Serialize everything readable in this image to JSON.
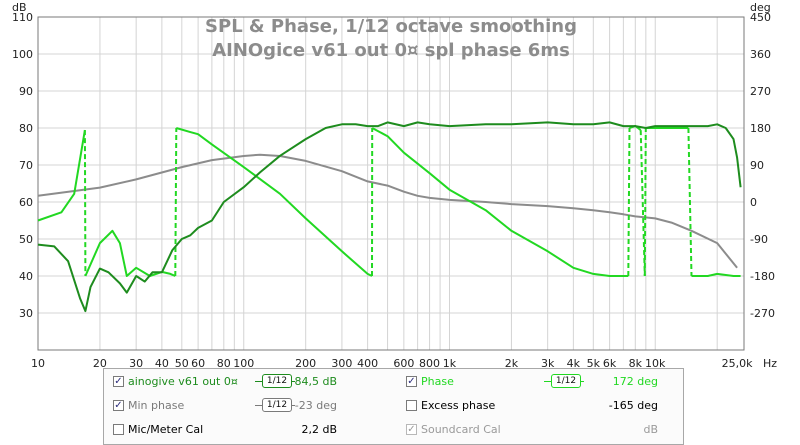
{
  "chart_data": {
    "type": "line",
    "title": "SPL & Phase, 1/12 octave smoothing",
    "subtitle": "AINOgice v61 out 0¤  spl phase 6ms",
    "left_axis": {
      "label": "dB",
      "ylim": [
        20,
        110
      ],
      "ticks": [
        30,
        40,
        50,
        60,
        70,
        80,
        90,
        100,
        110
      ]
    },
    "right_axis": {
      "label": "deg",
      "ylim": [
        -360,
        450
      ],
      "ticks": [
        -270,
        -180,
        -90,
        0,
        90,
        180,
        270,
        360,
        450
      ]
    },
    "x_axis": {
      "scale": "log",
      "xlim": [
        10,
        27000
      ],
      "unit": "Hz",
      "ticks": [
        {
          "v": 10,
          "label": "10"
        },
        {
          "v": 20,
          "label": "20"
        },
        {
          "v": 30,
          "label": "30"
        },
        {
          "v": 40,
          "label": "40"
        },
        {
          "v": 50,
          "label": "50"
        },
        {
          "v": 60,
          "label": "60"
        },
        {
          "v": 80,
          "label": "80"
        },
        {
          "v": 100,
          "label": "100"
        },
        {
          "v": 200,
          "label": "200"
        },
        {
          "v": 300,
          "label": "300"
        },
        {
          "v": 400,
          "label": "400"
        },
        {
          "v": 600,
          "label": "600"
        },
        {
          "v": 800,
          "label": "800"
        },
        {
          "v": 1000,
          "label": "1k"
        },
        {
          "v": 2000,
          "label": "2k"
        },
        {
          "v": 3000,
          "label": "3k"
        },
        {
          "v": 4000,
          "label": "4k"
        },
        {
          "v": 5000,
          "label": "5k"
        },
        {
          "v": 6000,
          "label": "6k"
        },
        {
          "v": 8000,
          "label": "8k"
        },
        {
          "v": 10000,
          "label": "10k"
        },
        {
          "v": 25000,
          "label": "25,0k"
        }
      ],
      "unit_label": "Hz"
    },
    "grid": true,
    "series": [
      {
        "name": "ainogive v61 out 0¤",
        "axis": "left",
        "color": "#1e8c1e",
        "width": 2,
        "x": [
          10,
          12,
          14,
          16,
          17,
          18,
          20,
          22,
          25,
          27,
          30,
          33,
          36,
          40,
          45,
          50,
          55,
          60,
          70,
          80,
          100,
          120,
          150,
          200,
          250,
          300,
          350,
          400,
          450,
          500,
          600,
          700,
          800,
          1000,
          1500,
          2000,
          3000,
          4000,
          5000,
          6000,
          7000,
          8000,
          9000,
          10000,
          12000,
          15000,
          18000,
          20000,
          22000,
          24000,
          25000,
          26000
        ],
        "y": [
          48.5,
          48,
          44,
          34,
          30.5,
          37,
          42,
          41,
          38,
          35.5,
          40,
          38.5,
          41,
          41,
          47,
          50,
          51,
          53,
          55,
          60,
          64,
          68,
          72.5,
          77,
          80,
          81,
          81,
          80.5,
          80.5,
          81.5,
          80.5,
          81.5,
          81,
          80.5,
          81,
          81,
          81.5,
          81,
          81,
          81.5,
          80.5,
          80.5,
          80,
          80.5,
          80.5,
          80.5,
          80.5,
          81,
          80,
          77,
          72,
          64
        ]
      },
      {
        "name": "Phase",
        "axis": "right",
        "color": "#22d822",
        "width": 2,
        "x": [
          10,
          13,
          15,
          16.9,
          17,
          20,
          23,
          25,
          27,
          30,
          35,
          40,
          44,
          46.5,
          47,
          55,
          60,
          70,
          100,
          150,
          200,
          300,
          400,
          420,
          421,
          500,
          600,
          800,
          1000,
          1500,
          2000,
          3000,
          4000,
          5000,
          6000,
          7000,
          7400,
          7500,
          8000,
          8500,
          8900,
          9000,
          10000,
          12000,
          14000,
          14500,
          15000,
          18000,
          20000,
          24000,
          26000
        ],
        "y": [
          -45,
          -25,
          20,
          175,
          -180,
          -100,
          -70,
          -100,
          -180,
          -160,
          -180,
          -170,
          -175,
          -180,
          180,
          170,
          165,
          140,
          85,
          20,
          -40,
          -120,
          -175,
          -180,
          180,
          160,
          120,
          70,
          30,
          -20,
          -70,
          -120,
          -160,
          -175,
          -180,
          -180,
          -180,
          180,
          185,
          175,
          -180,
          180,
          180,
          180,
          180,
          180,
          -180,
          -180,
          -175,
          -180,
          -180
        ]
      },
      {
        "name": "Min phase",
        "axis": "right",
        "color": "#8c8c8c",
        "width": 2,
        "x": [
          10,
          20,
          30,
          50,
          70,
          100,
          120,
          150,
          200,
          300,
          400,
          500,
          600,
          700,
          800,
          1000,
          1500,
          2000,
          3000,
          4000,
          5000,
          6000,
          7000,
          8000,
          10000,
          12000,
          15000,
          20000,
          25000
        ],
        "y": [
          15,
          35,
          55,
          85,
          102,
          112,
          115,
          112,
          100,
          75,
          50,
          40,
          25,
          15,
          10,
          5,
          0,
          -5,
          -10,
          -15,
          -20,
          -25,
          -30,
          -35,
          -40,
          -50,
          -70,
          -100,
          -160
        ]
      }
    ]
  },
  "legend": {
    "rows": [
      {
        "left": {
          "checked": true,
          "label": "ainogive v61 out 0¤",
          "smoothing": "1/12",
          "value": "84,5 dB",
          "color": "#1e8c1e",
          "enabled": true
        },
        "right": {
          "checked": true,
          "label": "Phase",
          "smoothing": "1/12",
          "value": "172 deg",
          "color": "#22d822",
          "enabled": true
        }
      },
      {
        "left": {
          "checked": true,
          "label": "Min phase",
          "smoothing": "1/12",
          "value": "-23 deg",
          "color": "#7a7a7a",
          "enabled": true
        },
        "right": {
          "checked": false,
          "label": "Excess phase",
          "smoothing": "",
          "value": "-165 deg",
          "color": "#000000",
          "enabled": true
        }
      },
      {
        "left": {
          "checked": false,
          "label": "Mic/Meter Cal",
          "smoothing": "",
          "value": "2,2 dB",
          "color": "#000000",
          "enabled": true
        },
        "right": {
          "checked": true,
          "label": "Soundcard Cal",
          "smoothing": "",
          "value": "dB",
          "color": "#9a9a9a",
          "enabled": false
        }
      }
    ]
  },
  "colors": {
    "title": "#8c8c8c",
    "grid": "#d4d4d4",
    "axis": "#7a7a7a"
  }
}
